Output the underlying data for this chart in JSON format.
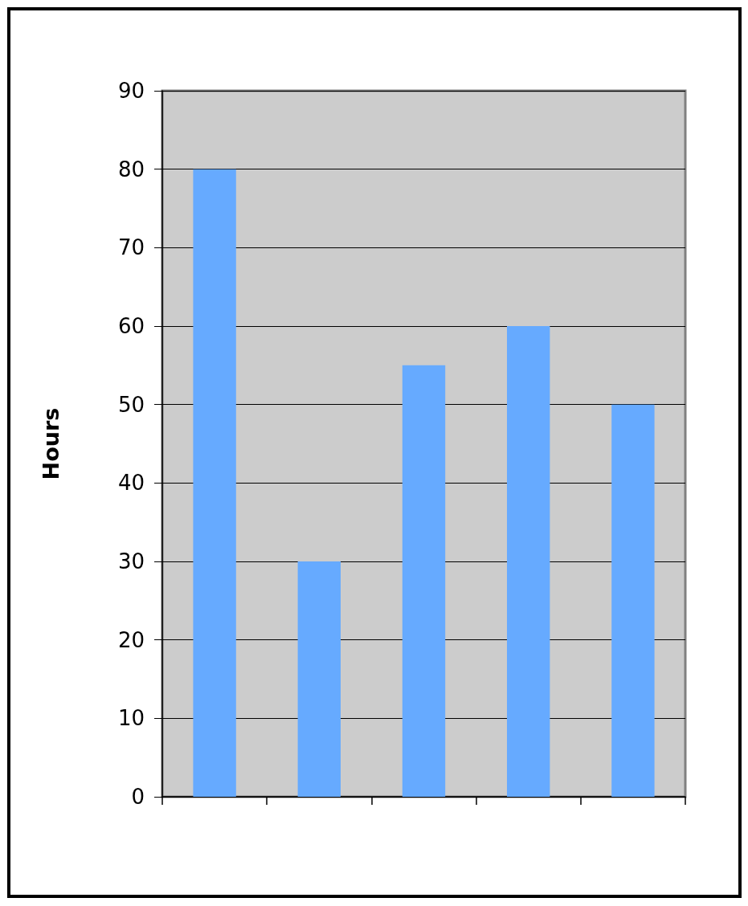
{
  "chart_data": {
    "type": "bar",
    "ylabel": "Hours",
    "categories": [
      null,
      null,
      null,
      null,
      null
    ],
    "values": [
      80,
      30,
      55,
      60,
      50
    ],
    "color": "#66aaff",
    "ylim": [
      0,
      90
    ],
    "yticks": [
      0,
      10,
      20,
      30,
      40,
      50,
      60,
      70,
      80,
      90
    ],
    "grid": "y"
  }
}
